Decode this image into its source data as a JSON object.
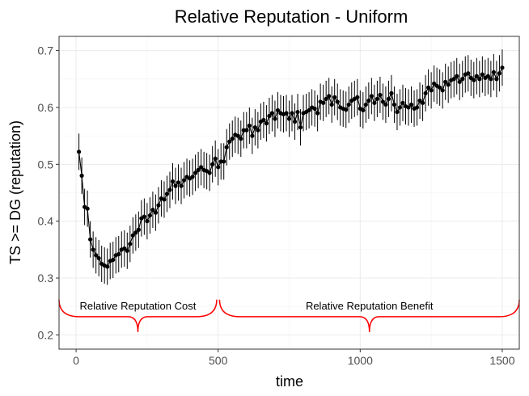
{
  "chart_data": {
    "type": "line",
    "title": "Relative Reputation - Uniform",
    "xlabel": "time",
    "ylabel": "TS  >=  DG (reputation)",
    "xlim": [
      -60,
      1560
    ],
    "ylim": [
      0.175,
      0.725
    ],
    "xticks": [
      0,
      500,
      1000,
      1500
    ],
    "yticks": [
      0.2,
      0.3,
      0.4,
      0.5,
      0.6,
      0.7
    ],
    "xtick_labels": [
      "0",
      "500",
      "1000",
      "1500"
    ],
    "ytick_labels": [
      "0.2",
      "0.3",
      "0.4",
      "0.5",
      "0.6",
      "0.7"
    ],
    "grid": true,
    "x": [
      10,
      20,
      30,
      40,
      50,
      60,
      70,
      80,
      90,
      100,
      110,
      120,
      130,
      140,
      150,
      160,
      170,
      180,
      190,
      200,
      210,
      220,
      230,
      240,
      250,
      260,
      270,
      280,
      290,
      300,
      310,
      320,
      330,
      340,
      350,
      360,
      370,
      380,
      390,
      400,
      410,
      420,
      430,
      440,
      450,
      460,
      470,
      480,
      490,
      500,
      510,
      520,
      530,
      540,
      550,
      560,
      570,
      580,
      590,
      600,
      610,
      620,
      630,
      640,
      650,
      660,
      670,
      680,
      690,
      700,
      710,
      720,
      730,
      740,
      750,
      760,
      770,
      780,
      790,
      800,
      810,
      820,
      830,
      840,
      850,
      860,
      870,
      880,
      890,
      900,
      910,
      920,
      930,
      940,
      950,
      960,
      970,
      980,
      990,
      1000,
      1010,
      1020,
      1030,
      1040,
      1050,
      1060,
      1070,
      1080,
      1090,
      1100,
      1110,
      1120,
      1130,
      1140,
      1150,
      1160,
      1170,
      1180,
      1190,
      1200,
      1210,
      1220,
      1230,
      1240,
      1250,
      1260,
      1270,
      1280,
      1290,
      1300,
      1310,
      1320,
      1330,
      1340,
      1350,
      1360,
      1370,
      1380,
      1390,
      1400,
      1410,
      1420,
      1430,
      1440,
      1450,
      1460,
      1470,
      1480,
      1490,
      1500
    ],
    "y": [
      0.522,
      0.48,
      0.425,
      0.422,
      0.368,
      0.35,
      0.34,
      0.335,
      0.325,
      0.322,
      0.32,
      0.33,
      0.332,
      0.34,
      0.342,
      0.35,
      0.352,
      0.348,
      0.36,
      0.375,
      0.38,
      0.385,
      0.405,
      0.408,
      0.4,
      0.41,
      0.42,
      0.415,
      0.428,
      0.44,
      0.438,
      0.448,
      0.455,
      0.47,
      0.462,
      0.468,
      0.462,
      0.472,
      0.478,
      0.475,
      0.478,
      0.485,
      0.49,
      0.495,
      0.49,
      0.488,
      0.485,
      0.5,
      0.51,
      0.495,
      0.505,
      0.505,
      0.53,
      0.54,
      0.545,
      0.552,
      0.55,
      0.545,
      0.56,
      0.56,
      0.568,
      0.55,
      0.565,
      0.56,
      0.575,
      0.578,
      0.572,
      0.585,
      0.59,
      0.58,
      0.595,
      0.59,
      0.588,
      0.59,
      0.58,
      0.59,
      0.575,
      0.592,
      0.565,
      0.59,
      0.592,
      0.595,
      0.6,
      0.598,
      0.59,
      0.61,
      0.608,
      0.615,
      0.62,
      0.605,
      0.618,
      0.61,
      0.6,
      0.598,
      0.596,
      0.605,
      0.612,
      0.615,
      0.618,
      0.598,
      0.595,
      0.605,
      0.612,
      0.62,
      0.608,
      0.615,
      0.622,
      0.61,
      0.605,
      0.615,
      0.625,
      0.605,
      0.592,
      0.6,
      0.608,
      0.602,
      0.6,
      0.605,
      0.598,
      0.6,
      0.612,
      0.608,
      0.625,
      0.635,
      0.63,
      0.642,
      0.638,
      0.635,
      0.63,
      0.645,
      0.64,
      0.648,
      0.65,
      0.655,
      0.645,
      0.65,
      0.658,
      0.66,
      0.652,
      0.648,
      0.655,
      0.65,
      0.658,
      0.652,
      0.655,
      0.65,
      0.662,
      0.65,
      0.66,
      0.67
    ],
    "err": 0.032,
    "color": "#000000",
    "annotations": [
      {
        "label": "Relative Reputation Cost",
        "from": -60,
        "to": 495,
        "color": "#ff0000"
      },
      {
        "label": "Relative Reputation Benefit",
        "from": 505,
        "to": 1560,
        "color": "#ff0000"
      }
    ]
  }
}
